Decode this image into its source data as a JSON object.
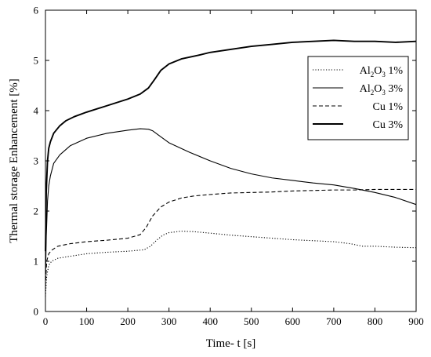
{
  "chart_data": {
    "type": "line",
    "xlabel": "Time- t [s]",
    "ylabel": "Thermal storage Enhancement [%]",
    "xlim": [
      0,
      900
    ],
    "ylim": [
      0,
      6
    ],
    "x_ticks": [
      0,
      100,
      200,
      300,
      400,
      500,
      600,
      700,
      800,
      900
    ],
    "y_ticks": [
      0,
      1,
      2,
      3,
      4,
      5,
      6
    ],
    "grid": false,
    "legend_position": "top-right",
    "series": [
      {
        "name": "Al2O3 1%",
        "legend": {
          "base": "Al",
          "sub": "2",
          "mid": "O",
          "sub2": "3",
          "rest": " 1%"
        },
        "style": "dotted",
        "width": 1.1,
        "x": [
          0,
          3,
          8,
          15,
          30,
          60,
          100,
          150,
          200,
          240,
          255,
          270,
          285,
          300,
          330,
          360,
          400,
          450,
          500,
          550,
          600,
          650,
          700,
          740,
          770,
          800,
          850,
          900
        ],
        "y": [
          0.3,
          0.7,
          0.92,
          1.0,
          1.06,
          1.1,
          1.15,
          1.18,
          1.2,
          1.23,
          1.3,
          1.42,
          1.52,
          1.57,
          1.6,
          1.59,
          1.56,
          1.52,
          1.49,
          1.46,
          1.43,
          1.41,
          1.39,
          1.35,
          1.3,
          1.3,
          1.28,
          1.27
        ]
      },
      {
        "name": "Al2O3 3%",
        "legend": {
          "base": "Al",
          "sub": "2",
          "mid": "O",
          "sub2": "3",
          "rest": " 3%"
        },
        "style": "solid",
        "width": 1.1,
        "x": [
          0,
          2,
          5,
          8,
          12,
          20,
          35,
          60,
          100,
          150,
          200,
          230,
          250,
          260,
          280,
          300,
          350,
          400,
          450,
          500,
          550,
          600,
          650,
          700,
          750,
          800,
          850,
          900
        ],
        "y": [
          0.6,
          1.5,
          2.2,
          2.5,
          2.7,
          2.95,
          3.12,
          3.3,
          3.45,
          3.55,
          3.61,
          3.64,
          3.63,
          3.6,
          3.48,
          3.36,
          3.17,
          3.0,
          2.85,
          2.74,
          2.66,
          2.61,
          2.56,
          2.52,
          2.45,
          2.37,
          2.27,
          2.13
        ]
      },
      {
        "name": "Cu 1%",
        "legend": {
          "base": "Cu 1%"
        },
        "style": "dashed",
        "width": 1.1,
        "x": [
          0,
          3,
          8,
          15,
          30,
          60,
          100,
          150,
          200,
          230,
          245,
          260,
          280,
          300,
          330,
          360,
          400,
          450,
          500,
          550,
          600,
          650,
          700,
          750,
          800,
          850,
          900
        ],
        "y": [
          0.5,
          1.0,
          1.15,
          1.22,
          1.3,
          1.35,
          1.39,
          1.42,
          1.46,
          1.53,
          1.68,
          1.9,
          2.08,
          2.18,
          2.26,
          2.3,
          2.33,
          2.36,
          2.37,
          2.38,
          2.4,
          2.41,
          2.42,
          2.42,
          2.43,
          2.43,
          2.43
        ]
      },
      {
        "name": "Cu 3%",
        "legend": {
          "base": "Cu 3%"
        },
        "style": "solid",
        "width": 1.9,
        "x": [
          0,
          2,
          5,
          8,
          12,
          20,
          35,
          50,
          70,
          100,
          150,
          200,
          230,
          250,
          265,
          280,
          300,
          330,
          370,
          400,
          450,
          500,
          550,
          600,
          650,
          700,
          750,
          800,
          850,
          900
        ],
        "y": [
          1.2,
          2.4,
          3.0,
          3.25,
          3.38,
          3.55,
          3.7,
          3.8,
          3.88,
          3.97,
          4.1,
          4.23,
          4.33,
          4.45,
          4.62,
          4.8,
          4.93,
          5.03,
          5.1,
          5.16,
          5.22,
          5.28,
          5.32,
          5.36,
          5.38,
          5.4,
          5.38,
          5.38,
          5.36,
          5.38
        ]
      }
    ]
  }
}
